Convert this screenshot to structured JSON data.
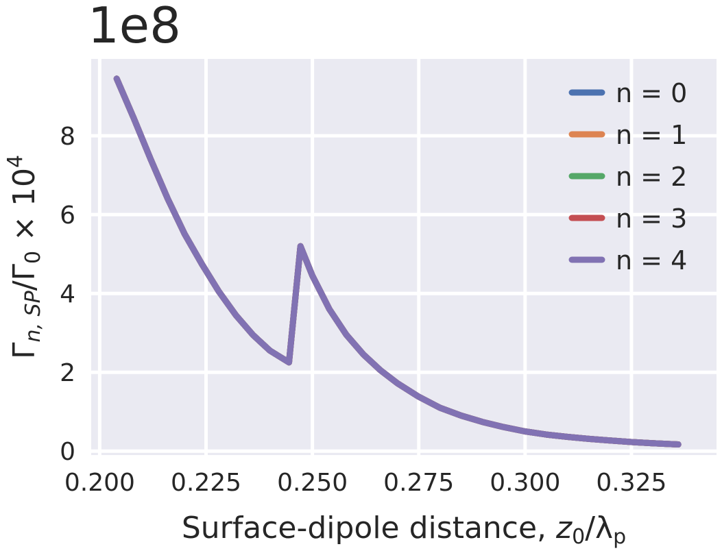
{
  "chart_data": {
    "type": "line",
    "offset_text": "1e8",
    "xlabel_prefix": "Surface-dipole distance, ",
    "xlabel_var": "z",
    "xlabel_var_sub": "0",
    "xlabel_slash": "/λ",
    "xlabel_denom_sub": "p",
    "ylabel_main": "Γ",
    "ylabel_sub": "n, SP",
    "ylabel_mid": "/Γ",
    "ylabel_sub2": "0",
    "ylabel_times": " × 10",
    "ylabel_sup": "4",
    "xlim": [
      0.198,
      0.345
    ],
    "ylim": [
      -0.1,
      9.95
    ],
    "x_ticks": [
      0.2,
      0.225,
      0.25,
      0.275,
      0.3,
      0.325
    ],
    "x_tick_labels": [
      "0.200",
      "0.225",
      "0.250",
      "0.275",
      "0.300",
      "0.325"
    ],
    "y_ticks": [
      0,
      2,
      4,
      6,
      8
    ],
    "y_tick_labels": [
      "0",
      "2",
      "4",
      "6",
      "8"
    ],
    "grid": true,
    "legend_position": "top-right",
    "series": [
      {
        "name": "n = 0",
        "color": "#4c72b0"
      },
      {
        "name": "n = 1",
        "color": "#dd8452"
      },
      {
        "name": "n = 2",
        "color": "#55a868"
      },
      {
        "name": "n = 3",
        "color": "#c44e52"
      },
      {
        "name": "n = 4",
        "color": "#8172b3"
      }
    ],
    "x": [
      0.204,
      0.208,
      0.212,
      0.216,
      0.22,
      0.224,
      0.228,
      0.232,
      0.236,
      0.24,
      0.2445,
      0.2472,
      0.25,
      0.254,
      0.258,
      0.262,
      0.266,
      0.27,
      0.275,
      0.28,
      0.285,
      0.29,
      0.295,
      0.3,
      0.305,
      0.31,
      0.315,
      0.32,
      0.325,
      0.33,
      0.336
    ],
    "y": [
      9.45,
      8.45,
      7.4,
      6.4,
      5.5,
      4.75,
      4.05,
      3.45,
      2.95,
      2.55,
      2.25,
      5.2,
      4.45,
      3.6,
      2.95,
      2.45,
      2.05,
      1.72,
      1.38,
      1.1,
      0.9,
      0.74,
      0.61,
      0.5,
      0.42,
      0.36,
      0.31,
      0.27,
      0.23,
      0.2,
      0.17
    ]
  }
}
